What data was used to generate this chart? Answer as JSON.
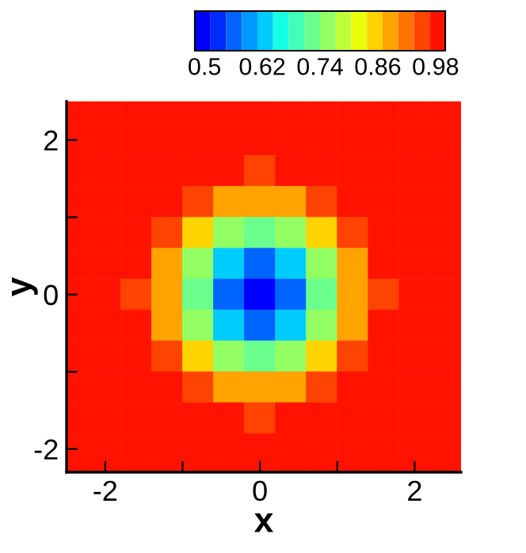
{
  "chart_data": {
    "type": "heatmap",
    "xlabel": "x",
    "ylabel": "y",
    "x": [
      -2.4,
      -2.0,
      -1.6,
      -1.2,
      -0.8,
      -0.4,
      0,
      0.4,
      0.8,
      1.2,
      1.6,
      2.0,
      2.4
    ],
    "y": [
      2.4,
      2.0,
      1.6,
      1.2,
      0.8,
      0.4,
      0,
      -0.4,
      -0.8,
      -1.2,
      -1.6,
      -2.0,
      -2.2
    ],
    "cells": [
      [
        1,
        1,
        1,
        1,
        1,
        1,
        1,
        1,
        1,
        1,
        1,
        1,
        1
      ],
      [
        1,
        1,
        1,
        1,
        0.99,
        0.99,
        0.99,
        0.99,
        0.99,
        1,
        1,
        1,
        1
      ],
      [
        1,
        1,
        1,
        0.99,
        0.98,
        0.97,
        0.96,
        0.97,
        0.98,
        0.99,
        1,
        1,
        1
      ],
      [
        1,
        1,
        0.99,
        0.97,
        0.94,
        0.9,
        0.88,
        0.9,
        0.94,
        0.97,
        0.99,
        1,
        1
      ],
      [
        1,
        0.99,
        0.98,
        0.94,
        0.86,
        0.77,
        0.73,
        0.77,
        0.86,
        0.94,
        0.98,
        0.99,
        1
      ],
      [
        1,
        0.99,
        0.97,
        0.9,
        0.77,
        0.62,
        0.56,
        0.62,
        0.77,
        0.9,
        0.97,
        0.99,
        1
      ],
      [
        1,
        0.99,
        0.96,
        0.88,
        0.73,
        0.56,
        0.48,
        0.56,
        0.73,
        0.88,
        0.96,
        0.99,
        1
      ],
      [
        1,
        0.99,
        0.97,
        0.9,
        0.77,
        0.62,
        0.56,
        0.62,
        0.77,
        0.9,
        0.97,
        0.99,
        1
      ],
      [
        1,
        0.99,
        0.98,
        0.94,
        0.86,
        0.77,
        0.73,
        0.77,
        0.86,
        0.94,
        0.98,
        0.99,
        1
      ],
      [
        1,
        1,
        0.99,
        0.97,
        0.94,
        0.9,
        0.88,
        0.9,
        0.94,
        0.97,
        0.99,
        1,
        1
      ],
      [
        1,
        1,
        1,
        0.99,
        0.98,
        0.97,
        0.96,
        0.97,
        0.98,
        0.99,
        1,
        1,
        1
      ],
      [
        1,
        1,
        1,
        1,
        0.99,
        0.99,
        0.99,
        0.99,
        0.99,
        1,
        1,
        1,
        1
      ],
      [
        1,
        1,
        1,
        1,
        1,
        1,
        1,
        1,
        1,
        1,
        1,
        1,
        1
      ]
    ],
    "clim": [
      0.48,
      1.0
    ],
    "cticks": [
      0.5,
      0.62,
      0.74,
      0.86,
      0.98
    ],
    "xlim": [
      -2.5,
      2.6
    ],
    "ylim": [
      -2.3,
      2.5
    ],
    "xticks": [
      -2,
      {
        "value": -1,
        "label": null
      },
      0,
      {
        "value": 1,
        "label": null
      },
      2
    ],
    "yticks": [
      -2,
      {
        "value": -1,
        "label": null
      },
      0,
      {
        "value": 1,
        "label": null
      },
      2
    ],
    "grid": false
  }
}
